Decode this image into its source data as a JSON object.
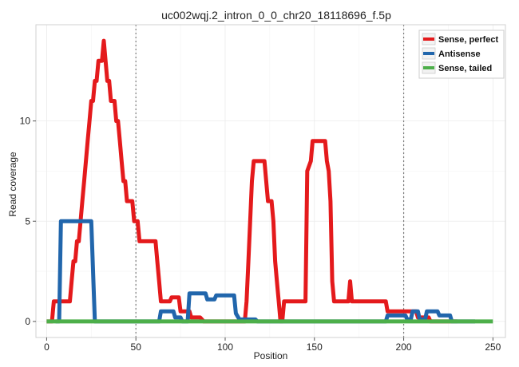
{
  "chart_data": {
    "type": "line",
    "title": "uc002wqj.2_intron_0_0_chr20_18118696_f.5p",
    "xlabel": "Position",
    "ylabel": "Read coverage",
    "xlim": [
      -6,
      257
    ],
    "ylim": [
      -0.8,
      14.8
    ],
    "x_ticks": [
      0,
      50,
      100,
      150,
      200,
      250
    ],
    "y_ticks": [
      0,
      5,
      10
    ],
    "vlines": [
      50,
      200
    ],
    "grid": true,
    "legend_position": "top-right",
    "series": [
      {
        "name": "Sense, perfect",
        "color": "#e41a1c",
        "points": [
          [
            0,
            0
          ],
          [
            3,
            0
          ],
          [
            4,
            1
          ],
          [
            13,
            1
          ],
          [
            14,
            2
          ],
          [
            15,
            3
          ],
          [
            16,
            3
          ],
          [
            17,
            4
          ],
          [
            18,
            4
          ],
          [
            19,
            5
          ],
          [
            20,
            6
          ],
          [
            21,
            7
          ],
          [
            22,
            8
          ],
          [
            23,
            9
          ],
          [
            24,
            10
          ],
          [
            25,
            11
          ],
          [
            26,
            11
          ],
          [
            27,
            12
          ],
          [
            28,
            12
          ],
          [
            29,
            13
          ],
          [
            30,
            13
          ],
          [
            31,
            13
          ],
          [
            32,
            14
          ],
          [
            33,
            13
          ],
          [
            34,
            12
          ],
          [
            35,
            12
          ],
          [
            36,
            11
          ],
          [
            38,
            11
          ],
          [
            39,
            10
          ],
          [
            40,
            10
          ],
          [
            41,
            9
          ],
          [
            42,
            8
          ],
          [
            43,
            7
          ],
          [
            44,
            7
          ],
          [
            45,
            6
          ],
          [
            46,
            6
          ],
          [
            48,
            6
          ],
          [
            49,
            5
          ],
          [
            51,
            5
          ],
          [
            52,
            4
          ],
          [
            56,
            4
          ],
          [
            57,
            4
          ],
          [
            61,
            4
          ],
          [
            62,
            3
          ],
          [
            63,
            2
          ],
          [
            64,
            1
          ],
          [
            69,
            1
          ],
          [
            70,
            1.2
          ],
          [
            74,
            1.2
          ],
          [
            75,
            0.5
          ],
          [
            80,
            0.5
          ],
          [
            81,
            0.2
          ],
          [
            86,
            0.2
          ],
          [
            88,
            0
          ],
          [
            111,
            0
          ],
          [
            112,
            1
          ],
          [
            113,
            3
          ],
          [
            114,
            5
          ],
          [
            115,
            7
          ],
          [
            116,
            8
          ],
          [
            117,
            8
          ],
          [
            122,
            8
          ],
          [
            123,
            7
          ],
          [
            124,
            6
          ],
          [
            126,
            6
          ],
          [
            127,
            5
          ],
          [
            128,
            3
          ],
          [
            129,
            2
          ],
          [
            130,
            1
          ],
          [
            131,
            0
          ],
          [
            132,
            0
          ],
          [
            133,
            1
          ],
          [
            145,
            1
          ],
          [
            146,
            7.5
          ],
          [
            148,
            8
          ],
          [
            149,
            9
          ],
          [
            156,
            9
          ],
          [
            157,
            8
          ],
          [
            158,
            7.5
          ],
          [
            159,
            6
          ],
          [
            160,
            2
          ],
          [
            161,
            1
          ],
          [
            169,
            1
          ],
          [
            170,
            2
          ],
          [
            171,
            1
          ],
          [
            190,
            1
          ],
          [
            191,
            0.5
          ],
          [
            207,
            0.5
          ],
          [
            208,
            0.2
          ],
          [
            214,
            0.2
          ],
          [
            215,
            0
          ],
          [
            230,
            0
          ]
        ]
      },
      {
        "name": "Antisense",
        "color": "#2166ac",
        "points": [
          [
            5,
            0
          ],
          [
            7,
            0
          ],
          [
            8,
            5
          ],
          [
            25,
            5
          ],
          [
            27,
            0
          ],
          [
            63,
            0
          ],
          [
            64,
            0.5
          ],
          [
            71,
            0.5
          ],
          [
            72,
            0.2
          ],
          [
            75,
            0.2
          ],
          [
            76,
            0
          ],
          [
            79,
            0
          ],
          [
            80,
            1.4
          ],
          [
            89,
            1.4
          ],
          [
            90,
            1.1
          ],
          [
            94,
            1.1
          ],
          [
            95,
            1.3
          ],
          [
            105,
            1.3
          ],
          [
            106,
            0.4
          ],
          [
            108,
            0.1
          ],
          [
            117,
            0.1
          ],
          [
            118,
            0
          ],
          [
            190,
            0
          ],
          [
            191,
            0.3
          ],
          [
            201,
            0.3
          ],
          [
            202,
            0.1
          ],
          [
            204,
            0.1
          ],
          [
            205,
            0.5
          ],
          [
            208,
            0.5
          ],
          [
            209,
            0.1
          ],
          [
            212,
            0.1
          ],
          [
            213,
            0.5
          ],
          [
            219,
            0.5
          ],
          [
            220,
            0.3
          ],
          [
            226,
            0.3
          ],
          [
            227,
            0
          ],
          [
            240,
            0
          ]
        ]
      },
      {
        "name": "Sense, tailed",
        "color": "#4daf4a",
        "points": [
          [
            0,
            0
          ],
          [
            250,
            0
          ]
        ]
      }
    ]
  }
}
